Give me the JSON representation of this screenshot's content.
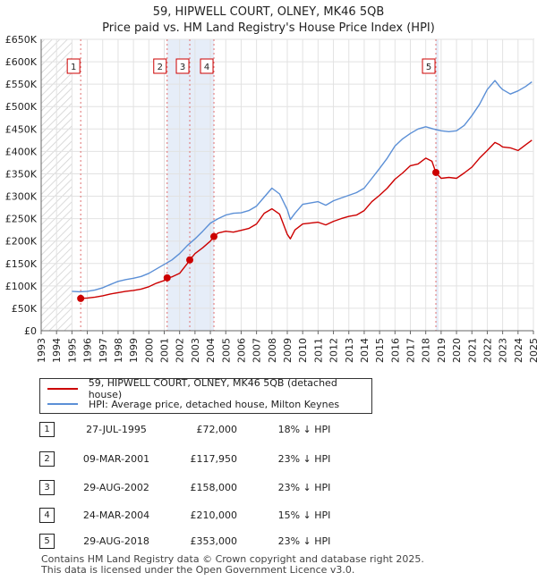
{
  "chart_data": {
    "type": "line",
    "title": "59, HIPWELL COURT, OLNEY, MK46 5QB",
    "subtitle": "Price paid vs. HM Land Registry's House Price Index (HPI)",
    "xlim": [
      1993,
      2025
    ],
    "ylim": [
      0,
      650000
    ],
    "x_ticks": [
      "1993",
      "1994",
      "1995",
      "1996",
      "1997",
      "1998",
      "1999",
      "2000",
      "2001",
      "2002",
      "2003",
      "2004",
      "2005",
      "2006",
      "2007",
      "2008",
      "2009",
      "2010",
      "2011",
      "2012",
      "2013",
      "2014",
      "2015",
      "2016",
      "2017",
      "2018",
      "2019",
      "2020",
      "2021",
      "2022",
      "2023",
      "2024",
      "2025"
    ],
    "y_ticks": [
      {
        "value": 0,
        "label": "£0"
      },
      {
        "value": 50000,
        "label": "£50K"
      },
      {
        "value": 100000,
        "label": "£100K"
      },
      {
        "value": 150000,
        "label": "£150K"
      },
      {
        "value": 200000,
        "label": "£200K"
      },
      {
        "value": 250000,
        "label": "£250K"
      },
      {
        "value": 300000,
        "label": "£300K"
      },
      {
        "value": 350000,
        "label": "£350K"
      },
      {
        "value": 400000,
        "label": "£400K"
      },
      {
        "value": 450000,
        "label": "£450K"
      },
      {
        "value": 500000,
        "label": "£500K"
      },
      {
        "value": 550000,
        "label": "£550K"
      },
      {
        "value": 600000,
        "label": "£600K"
      },
      {
        "value": 650000,
        "label": "£650K"
      }
    ],
    "grid": true,
    "series": [
      {
        "name": "59, HIPWELL COURT, OLNEY, MK46 5QB (detached house)",
        "color": "#cc0000",
        "x": [
          1995.57,
          1996.0,
          1996.5,
          1997.0,
          1997.5,
          1998.0,
          1998.5,
          1999.0,
          1999.5,
          2000.0,
          2000.5,
          2001.0,
          2001.19,
          2001.5,
          2002.0,
          2002.5,
          2002.66,
          2003.0,
          2003.5,
          2004.0,
          2004.23,
          2004.5,
          2005.0,
          2005.5,
          2006.0,
          2006.5,
          2007.0,
          2007.5,
          2008.0,
          2008.5,
          2009.0,
          2009.2,
          2009.5,
          2010.0,
          2010.5,
          2011.0,
          2011.5,
          2012.0,
          2012.5,
          2013.0,
          2013.5,
          2014.0,
          2014.5,
          2015.0,
          2015.5,
          2016.0,
          2016.5,
          2017.0,
          2017.5,
          2018.0,
          2018.4,
          2018.66,
          2019.0,
          2019.5,
          2020.0,
          2020.5,
          2021.0,
          2021.5,
          2022.0,
          2022.5,
          2022.8,
          2023.0,
          2023.5,
          2024.0,
          2024.5,
          2024.9
        ],
        "values": [
          72000,
          73000,
          75000,
          78000,
          82000,
          85000,
          88000,
          90000,
          93000,
          98000,
          106000,
          112000,
          117950,
          120000,
          128000,
          150000,
          158000,
          172000,
          185000,
          200000,
          210000,
          218000,
          222000,
          220000,
          224000,
          228000,
          238000,
          262000,
          272000,
          260000,
          215000,
          205000,
          225000,
          238000,
          240000,
          242000,
          236000,
          244000,
          250000,
          255000,
          258000,
          268000,
          288000,
          302000,
          318000,
          338000,
          352000,
          368000,
          372000,
          385000,
          378000,
          353000,
          340000,
          342000,
          340000,
          352000,
          365000,
          385000,
          402000,
          420000,
          415000,
          410000,
          408000,
          402000,
          415000,
          425000
        ]
      },
      {
        "name": "HPI: Average price, detached house, Milton Keynes",
        "color": "#5b8fd6",
        "x": [
          1995.0,
          1995.5,
          1996.0,
          1996.5,
          1997.0,
          1997.5,
          1998.0,
          1998.5,
          1999.0,
          1999.5,
          2000.0,
          2000.5,
          2001.0,
          2001.5,
          2002.0,
          2002.5,
          2003.0,
          2003.5,
          2004.0,
          2004.5,
          2005.0,
          2005.5,
          2006.0,
          2006.5,
          2007.0,
          2007.5,
          2008.0,
          2008.5,
          2009.0,
          2009.2,
          2009.5,
          2010.0,
          2010.5,
          2011.0,
          2011.5,
          2012.0,
          2012.5,
          2013.0,
          2013.5,
          2014.0,
          2014.5,
          2015.0,
          2015.5,
          2016.0,
          2016.5,
          2017.0,
          2017.5,
          2018.0,
          2018.5,
          2019.0,
          2019.5,
          2020.0,
          2020.5,
          2021.0,
          2021.5,
          2022.0,
          2022.5,
          2022.8,
          2023.0,
          2023.5,
          2024.0,
          2024.5,
          2024.9
        ],
        "values": [
          88000,
          87000,
          88000,
          91000,
          96000,
          103000,
          110000,
          114000,
          117000,
          121000,
          128000,
          138000,
          148000,
          158000,
          172000,
          190000,
          205000,
          222000,
          240000,
          250000,
          258000,
          262000,
          263000,
          268000,
          278000,
          298000,
          318000,
          305000,
          270000,
          248000,
          262000,
          282000,
          285000,
          288000,
          280000,
          290000,
          296000,
          302000,
          308000,
          318000,
          340000,
          362000,
          385000,
          412000,
          428000,
          440000,
          450000,
          455000,
          450000,
          446000,
          444000,
          446000,
          458000,
          480000,
          505000,
          538000,
          558000,
          545000,
          538000,
          528000,
          535000,
          545000,
          555000
        ]
      }
    ],
    "annotations": [
      {
        "label": "1",
        "x": 1995.57
      },
      {
        "label": "2",
        "x": 2001.19
      },
      {
        "label": "3",
        "x": 2002.66
      },
      {
        "label": "4",
        "x": 2004.23
      },
      {
        "label": "5",
        "x": 2018.66
      }
    ],
    "sale_points": [
      {
        "x": 1995.57,
        "value": 72000
      },
      {
        "x": 2001.19,
        "value": 117950
      },
      {
        "x": 2002.66,
        "value": 158000
      },
      {
        "x": 2004.23,
        "value": 210000
      },
      {
        "x": 2018.66,
        "value": 353000
      }
    ],
    "hatch_until": 1995.0
  },
  "header": {
    "title": "59, HIPWELL COURT, OLNEY, MK46 5QB",
    "subtitle": "Price paid vs. HM Land Registry's House Price Index (HPI)"
  },
  "legend": {
    "items": [
      {
        "label": "59, HIPWELL COURT, OLNEY, MK46 5QB (detached house)",
        "color": "#cc0000"
      },
      {
        "label": "HPI: Average price, detached house, Milton Keynes",
        "color": "#5b8fd6"
      }
    ]
  },
  "sales": [
    {
      "num": "1",
      "date": "27-JUL-1995",
      "price": "£72,000",
      "hpi": "18% ↓ HPI"
    },
    {
      "num": "2",
      "date": "09-MAR-2001",
      "price": "£117,950",
      "hpi": "23% ↓ HPI"
    },
    {
      "num": "3",
      "date": "29-AUG-2002",
      "price": "£158,000",
      "hpi": "23% ↓ HPI"
    },
    {
      "num": "4",
      "date": "24-MAR-2004",
      "price": "£210,000",
      "hpi": "15% ↓ HPI"
    },
    {
      "num": "5",
      "date": "29-AUG-2018",
      "price": "£353,000",
      "hpi": "23% ↓ HPI"
    }
  ],
  "footer": {
    "line1": "Contains HM Land Registry data © Crown copyright and database right 2025.",
    "line2": "This data is licensed under the Open Government Licence v3.0."
  }
}
